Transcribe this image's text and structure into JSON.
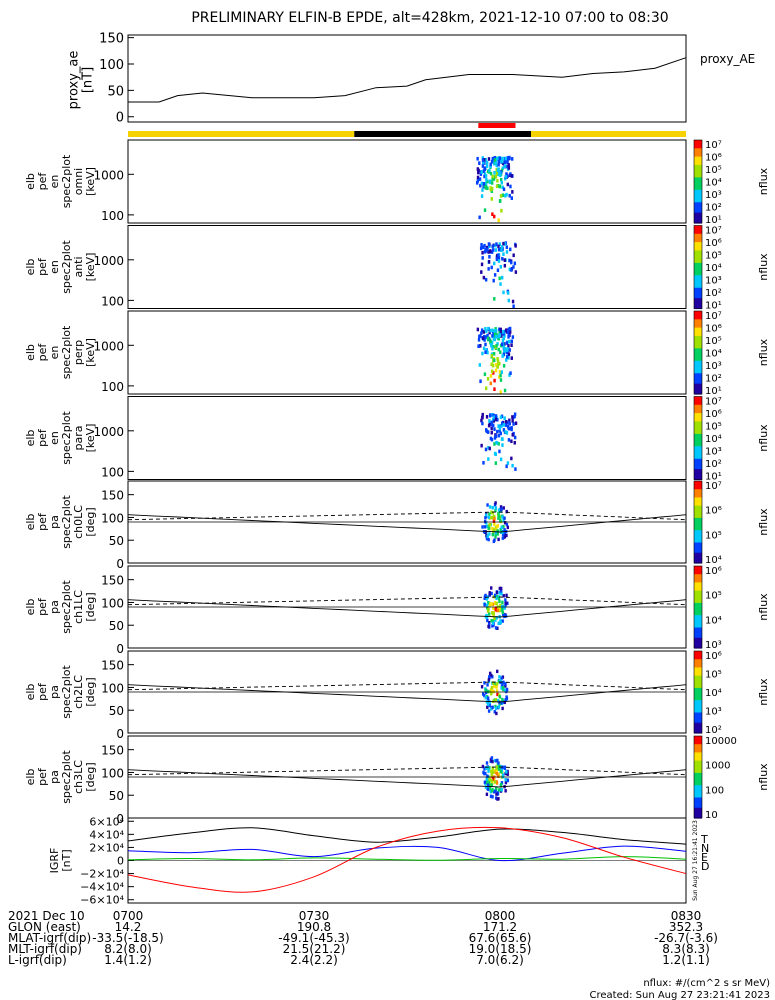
{
  "title": "PRELIMINARY ELFIN-B EPDE, alt=428km, 2021-12-10 07:00 to 08:30",
  "colors": {
    "orbit_yellow": "#f5d200",
    "orbit_black": "#000000",
    "science_red": "#ff0000",
    "igrf_T": "#000000",
    "igrf_N": "#0000ff",
    "igrf_E": "#00c000",
    "igrf_D": "#ff0000"
  },
  "chart_data": [
    {
      "type": "line",
      "panel": "proxy_ae",
      "ylabel_lines": [
        "proxy_ae",
        "[nT]"
      ],
      "legend": "proxy_AE",
      "yticks": [
        "150",
        "100",
        "50",
        "0"
      ],
      "ylim": [
        -10,
        155
      ],
      "x_minutes": [
        0,
        5,
        8,
        12,
        20,
        30,
        35,
        40,
        45,
        48,
        55,
        62,
        70,
        75,
        80,
        85,
        90
      ],
      "values": [
        28,
        28,
        40,
        45,
        36,
        36,
        40,
        55,
        58,
        70,
        80,
        80,
        75,
        82,
        85,
        92,
        112
      ]
    },
    {
      "type": "bar",
      "panel": "orbit_bar",
      "segments": [
        {
          "from_minute": 0,
          "to_minute": 36.5,
          "color": "#f5d200"
        },
        {
          "from_minute": 36.5,
          "to_minute": 65,
          "color": "#000000"
        },
        {
          "from_minute": 65,
          "to_minute": 90,
          "color": "#f5d200"
        }
      ],
      "science_zone": {
        "from_minute": 56.5,
        "to_minute": 62.5,
        "color": "#ff0000"
      }
    },
    {
      "type": "heatmap",
      "panel": "energy_spectra",
      "energy_axis": "log",
      "yticks": [
        "1000",
        "100"
      ],
      "panels": [
        {
          "ylabel_lines": [
            "elb",
            "pef",
            "en",
            "spec2plot",
            "omni",
            "[keV]"
          ],
          "zlabel": "nflux",
          "zticks": [
            "10⁷",
            "10⁶",
            "10⁵",
            "10⁴",
            "10³",
            "10²",
            "10¹"
          ],
          "center_minute": 59,
          "intensity": 1.0
        },
        {
          "ylabel_lines": [
            "elb",
            "pef",
            "en",
            "spec2plot",
            "anti",
            "[keV]"
          ],
          "zlabel": "nflux",
          "zticks": [
            "10⁷",
            "10⁶",
            "10⁵",
            "10⁴",
            "10³",
            "10²",
            "10¹"
          ],
          "center_minute": 59.5,
          "intensity": 0.45
        },
        {
          "ylabel_lines": [
            "elb",
            "pef",
            "en",
            "spec2plot",
            "perp",
            "[keV]"
          ],
          "zlabel": "nflux",
          "zticks": [
            "10⁷",
            "10⁶",
            "10⁵",
            "10⁴",
            "10³",
            "10²",
            "10¹"
          ],
          "center_minute": 59,
          "intensity": 1.0
        },
        {
          "ylabel_lines": [
            "elb",
            "pef",
            "en",
            "spec2plot",
            "para",
            "[keV]"
          ],
          "zlabel": "nflux",
          "zticks": [
            "10⁷",
            "10⁶",
            "10⁵",
            "10⁴",
            "10³",
            "10²",
            "10¹"
          ],
          "center_minute": 59.5,
          "intensity": 0.45
        }
      ]
    },
    {
      "type": "heatmap",
      "panel": "pitch_angle",
      "yticks": [
        "150",
        "100",
        "50",
        "0"
      ],
      "ylim": [
        0,
        180
      ],
      "loss_cone_deg": [
        {
          "minute": 0,
          "value": 106
        },
        {
          "minute": 60,
          "value": 68
        },
        {
          "minute": 90,
          "value": 106
        }
      ],
      "anti_loss_cone_deg": [
        {
          "minute": 0,
          "value": 95
        },
        {
          "minute": 60,
          "value": 112
        },
        {
          "minute": 90,
          "value": 95
        }
      ],
      "reference_deg": 90,
      "panels": [
        {
          "ylabel_lines": [
            "elb",
            "pef",
            "pa",
            "spec2plot",
            "ch0LC",
            "[deg]"
          ],
          "zlabel": "nflux",
          "zticks": [
            "10⁷",
            "10⁶",
            "10⁵",
            "10⁴"
          ]
        },
        {
          "ylabel_lines": [
            "elb",
            "pef",
            "pa",
            "spec2plot",
            "ch1LC",
            "[deg]"
          ],
          "zlabel": "nflux",
          "zticks": [
            "10⁶",
            "10⁵",
            "10⁴",
            "10³"
          ]
        },
        {
          "ylabel_lines": [
            "elb",
            "pef",
            "pa",
            "spec2plot",
            "ch2LC",
            "[deg]"
          ],
          "zlabel": "nflux",
          "zticks": [
            "10⁶",
            "10⁵",
            "10⁴",
            "10³",
            "10²"
          ]
        },
        {
          "ylabel_lines": [
            "elb",
            "pef",
            "pa",
            "spec2plot",
            "ch3LC",
            "[deg]"
          ],
          "zlabel": "nflux",
          "zticks": [
            "10000",
            "1000",
            "100",
            "10"
          ]
        }
      ]
    },
    {
      "type": "line",
      "panel": "igrf",
      "ylabel_lines": [
        "IGRF",
        "[nT]"
      ],
      "yticks": [
        "6×10⁴",
        "4×10⁴",
        "2×10⁴",
        "0",
        "−2×10⁴",
        "−4×10⁴",
        "−6×10⁴"
      ],
      "ylim": [
        -65000,
        65000
      ],
      "legend": [
        "T",
        "N",
        "E",
        "D"
      ],
      "x_minutes": [
        0,
        10,
        20,
        30,
        40,
        50,
        60,
        70,
        80,
        90
      ],
      "series": [
        {
          "name": "T",
          "color": "#000000",
          "values": [
            30000,
            42000,
            50000,
            38000,
            28000,
            36000,
            48000,
            43000,
            32000,
            25000
          ]
        },
        {
          "name": "N",
          "color": "#0000ff",
          "values": [
            15000,
            12000,
            17000,
            6000,
            19000,
            20000,
            0,
            11000,
            22000,
            14000
          ]
        },
        {
          "name": "E",
          "color": "#00c000",
          "values": [
            1000,
            3000,
            1000,
            4000,
            2000,
            500,
            3000,
            2000,
            6000,
            2000
          ]
        },
        {
          "name": "D",
          "color": "#ff0000",
          "values": [
            -22000,
            -40000,
            -48000,
            -25000,
            20000,
            45000,
            50000,
            35000,
            5000,
            -20000
          ]
        }
      ],
      "side_text": "Sun Aug 27 16:21:41 2023"
    }
  ],
  "footer": {
    "rows": [
      [
        "2021 Dec 10",
        "0700",
        "0730",
        "0800",
        "0830"
      ],
      [
        "GLON (east)",
        "14.2",
        "190.8",
        "171.2",
        "352.3"
      ],
      [
        "MLAT-igrf(dip)",
        "-33.5(-18.5)",
        "-49.1(-45.3)",
        "67.6(65.6)",
        "-26.7(-3.6)"
      ],
      [
        "MLT-igrf(dip)",
        "8.2(8.0)",
        "21.5(21.2)",
        "19.0(18.5)",
        "8.3(8.3)"
      ],
      [
        "L-igrf(dip)",
        "1.4(1.2)",
        "2.4(2.2)",
        "7.0(6.2)",
        "1.2(1.1)"
      ]
    ],
    "units_note": "nflux: #/(cm^2 s sr MeV)",
    "created": "Created: Sun Aug 27 23:21:41 2023"
  }
}
